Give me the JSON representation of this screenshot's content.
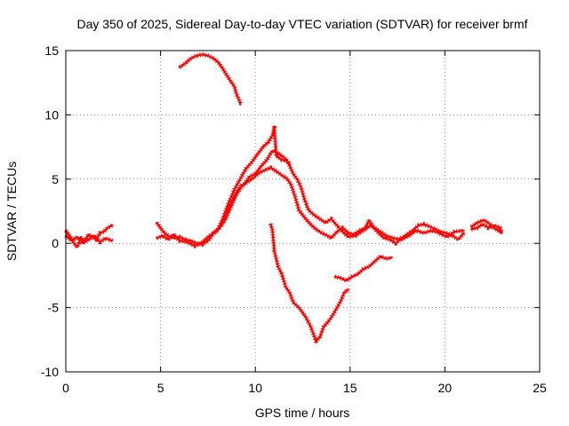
{
  "chart_data": {
    "type": "scatter",
    "title": "Day 350 of 2025, Sidereal Day-to-day VTEC variation (SDTVAR) for receiver brmf",
    "xlabel": "GPS time / hours",
    "ylabel": "SDTVAR / TECUs",
    "xlim": [
      0,
      25
    ],
    "ylim": [
      -10,
      15
    ],
    "xticks": [
      "0",
      "5",
      "10",
      "15",
      "20",
      "25"
    ],
    "yticks": [
      "-10",
      "-5",
      "0",
      "5",
      "10",
      "15"
    ],
    "grid": true,
    "color": "#ff0000",
    "series": [
      {
        "name": "segment-early-morning",
        "points": [
          [
            0.0,
            1.0
          ],
          [
            0.2,
            0.6
          ],
          [
            0.4,
            0.1
          ],
          [
            0.6,
            -0.3
          ],
          [
            0.8,
            0.4
          ],
          [
            1.0,
            0.2
          ],
          [
            1.2,
            0.7
          ],
          [
            1.4,
            0.5
          ],
          [
            1.6,
            0.3
          ],
          [
            1.8,
            0.8
          ],
          [
            2.0,
            0.9
          ],
          [
            2.2,
            1.2
          ],
          [
            2.45,
            1.4
          ]
        ]
      },
      {
        "name": "segment-early-morning-b",
        "points": [
          [
            0.0,
            0.6
          ],
          [
            0.3,
            0.2
          ],
          [
            0.6,
            0.5
          ],
          [
            0.9,
            0.0
          ],
          [
            1.2,
            0.3
          ],
          [
            1.5,
            0.6
          ],
          [
            1.8,
            0.1
          ],
          [
            2.1,
            0.4
          ],
          [
            2.45,
            0.2
          ]
        ]
      },
      {
        "name": "segment-morning",
        "points": [
          [
            4.8,
            1.6
          ],
          [
            5.0,
            1.2
          ],
          [
            5.2,
            0.8
          ],
          [
            5.5,
            0.5
          ],
          [
            5.8,
            0.4
          ],
          [
            6.0,
            0.5
          ],
          [
            6.3,
            0.3
          ],
          [
            6.6,
            0.2
          ],
          [
            6.9,
            0.0
          ],
          [
            7.2,
            -0.1
          ],
          [
            7.5,
            0.2
          ],
          [
            7.8,
            0.8
          ],
          [
            8.1,
            1.2
          ],
          [
            8.4,
            1.8
          ],
          [
            8.7,
            2.8
          ],
          [
            9.0,
            3.8
          ],
          [
            9.3,
            4.5
          ],
          [
            9.6,
            4.8
          ],
          [
            9.9,
            5.1
          ],
          [
            10.2,
            5.5
          ],
          [
            10.5,
            5.7
          ],
          [
            10.8,
            5.9
          ],
          [
            11.1,
            5.6
          ],
          [
            11.4,
            5.3
          ],
          [
            11.7,
            5.0
          ],
          [
            11.9,
            4.5
          ],
          [
            12.1,
            3.6
          ],
          [
            12.3,
            2.6
          ],
          [
            12.6,
            2.0
          ],
          [
            12.9,
            1.5
          ],
          [
            13.2,
            1.1
          ],
          [
            13.5,
            0.8
          ],
          [
            13.8,
            0.6
          ],
          [
            14.0,
            0.4
          ],
          [
            14.3,
            0.9
          ],
          [
            14.6,
            1.2
          ],
          [
            14.9,
            0.8
          ],
          [
            15.2,
            0.7
          ],
          [
            15.5,
            1.0
          ],
          [
            15.8,
            1.2
          ],
          [
            16.0,
            1.8
          ],
          [
            16.2,
            1.3
          ],
          [
            16.5,
            0.8
          ],
          [
            16.8,
            0.4
          ],
          [
            17.1,
            0.3
          ],
          [
            17.4,
            0.0
          ],
          [
            17.7,
            0.4
          ],
          [
            18.0,
            0.7
          ],
          [
            18.3,
            1.0
          ],
          [
            18.6,
            1.4
          ],
          [
            18.9,
            1.5
          ],
          [
            19.2,
            1.3
          ],
          [
            19.5,
            1.1
          ],
          [
            19.8,
            0.9
          ],
          [
            20.1,
            0.8
          ],
          [
            20.4,
            0.6
          ],
          [
            20.7,
            0.3
          ],
          [
            21.0,
            0.8
          ]
        ]
      },
      {
        "name": "segment-morning-b",
        "points": [
          [
            4.8,
            0.4
          ],
          [
            5.1,
            0.6
          ],
          [
            5.4,
            0.3
          ],
          [
            5.7,
            0.7
          ],
          [
            6.0,
            0.2
          ],
          [
            6.4,
            0.1
          ],
          [
            6.8,
            -0.2
          ],
          [
            7.2,
            0.1
          ],
          [
            7.6,
            0.6
          ],
          [
            8.0,
            1.0
          ],
          [
            8.3,
            2.0
          ],
          [
            8.6,
            3.2
          ],
          [
            8.9,
            4.2
          ],
          [
            9.2,
            5.0
          ],
          [
            9.5,
            5.8
          ],
          [
            9.8,
            6.3
          ],
          [
            10.1,
            6.9
          ],
          [
            10.4,
            7.5
          ],
          [
            10.7,
            7.9
          ],
          [
            10.9,
            8.4
          ],
          [
            11.0,
            9.0
          ],
          [
            11.1,
            6.8
          ],
          [
            11.4,
            6.5
          ],
          [
            11.7,
            6.4
          ],
          [
            12.0,
            5.4
          ],
          [
            12.2,
            5.0
          ],
          [
            12.4,
            4.4
          ],
          [
            12.6,
            3.4
          ],
          [
            12.8,
            2.6
          ],
          [
            13.1,
            2.2
          ],
          [
            13.4,
            1.9
          ],
          [
            13.7,
            1.6
          ],
          [
            14.0,
            1.9
          ],
          [
            14.3,
            1.4
          ],
          [
            14.6,
            0.9
          ],
          [
            14.9,
            0.5
          ],
          [
            15.3,
            0.6
          ],
          [
            15.7,
            1.0
          ],
          [
            16.1,
            1.4
          ],
          [
            16.5,
            1.0
          ],
          [
            16.9,
            0.6
          ],
          [
            17.3,
            0.4
          ],
          [
            17.7,
            0.3
          ],
          [
            18.1,
            0.6
          ],
          [
            18.5,
            1.0
          ],
          [
            18.9,
            0.8
          ],
          [
            19.3,
            1.0
          ],
          [
            19.7,
            0.8
          ],
          [
            20.1,
            0.5
          ],
          [
            20.5,
            0.9
          ],
          [
            21.0,
            1.0
          ]
        ]
      },
      {
        "name": "segment-morning-c",
        "points": [
          [
            8.2,
            1.4
          ],
          [
            8.5,
            2.4
          ],
          [
            8.8,
            3.4
          ],
          [
            9.1,
            4.2
          ],
          [
            9.4,
            4.6
          ],
          [
            9.7,
            5.2
          ],
          [
            10.0,
            5.4
          ],
          [
            10.3,
            6.0
          ],
          [
            10.6,
            6.5
          ],
          [
            10.9,
            7.2
          ],
          [
            11.2,
            7.0
          ],
          [
            11.5,
            6.7
          ],
          [
            11.8,
            6.2
          ]
        ]
      },
      {
        "name": "segment-high",
        "points": [
          [
            6.0,
            13.7
          ],
          [
            6.3,
            14.0
          ],
          [
            6.6,
            14.4
          ],
          [
            6.9,
            14.6
          ],
          [
            7.2,
            14.7
          ],
          [
            7.5,
            14.6
          ],
          [
            7.8,
            14.4
          ],
          [
            8.1,
            14.0
          ],
          [
            8.4,
            13.3
          ],
          [
            8.7,
            12.6
          ],
          [
            8.9,
            12.2
          ],
          [
            9.0,
            11.6
          ],
          [
            9.2,
            11.0
          ],
          [
            9.2,
            10.8
          ]
        ]
      },
      {
        "name": "segment-afternoon",
        "points": [
          [
            21.4,
            1.3
          ],
          [
            21.7,
            1.6
          ],
          [
            22.0,
            1.8
          ],
          [
            22.2,
            1.7
          ],
          [
            22.5,
            1.3
          ],
          [
            22.8,
            1.0
          ],
          [
            23.0,
            0.8
          ]
        ]
      },
      {
        "name": "segment-afternoon-b",
        "points": [
          [
            21.4,
            1.1
          ],
          [
            21.7,
            1.2
          ],
          [
            22.0,
            1.5
          ],
          [
            22.3,
            1.2
          ],
          [
            22.6,
            1.4
          ],
          [
            22.9,
            1.2
          ],
          [
            23.0,
            0.9
          ]
        ]
      },
      {
        "name": "segment-negative",
        "points": [
          [
            10.8,
            1.5
          ],
          [
            10.9,
            1.0
          ],
          [
            11.0,
            -0.6
          ],
          [
            11.2,
            -1.8
          ],
          [
            11.4,
            -2.4
          ],
          [
            11.6,
            -3.4
          ],
          [
            11.8,
            -3.8
          ],
          [
            12.0,
            -4.6
          ],
          [
            12.3,
            -5.0
          ],
          [
            12.6,
            -5.6
          ],
          [
            12.9,
            -6.4
          ],
          [
            13.1,
            -7.2
          ],
          [
            13.2,
            -7.6
          ],
          [
            13.4,
            -7.3
          ],
          [
            13.6,
            -6.5
          ],
          [
            13.9,
            -6.0
          ],
          [
            14.2,
            -5.3
          ],
          [
            14.5,
            -4.5
          ],
          [
            14.7,
            -3.8
          ],
          [
            14.9,
            -3.6
          ]
        ]
      },
      {
        "name": "segment-negative-b",
        "points": [
          [
            14.2,
            -2.6
          ],
          [
            14.5,
            -2.7
          ],
          [
            14.8,
            -2.9
          ],
          [
            15.1,
            -2.6
          ],
          [
            15.4,
            -2.4
          ],
          [
            15.7,
            -2.0
          ],
          [
            16.0,
            -1.8
          ],
          [
            16.3,
            -1.4
          ],
          [
            16.6,
            -1.0
          ],
          [
            16.9,
            -1.2
          ],
          [
            17.2,
            -1.1
          ]
        ]
      }
    ]
  }
}
